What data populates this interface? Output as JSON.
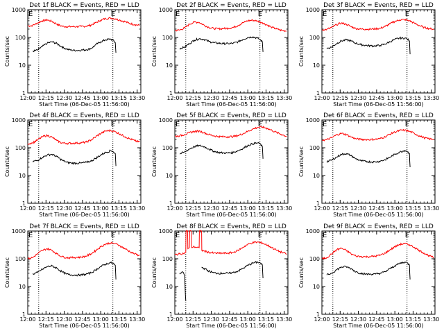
{
  "page": {
    "xlabel": "Start Time (06-Dec-05 11:56:00)",
    "ylabel": "Counts/sec",
    "x_ticks": [
      "12:00",
      "12:15",
      "12:30",
      "12:45",
      "13:00",
      "13:15",
      "13:30"
    ],
    "y_ticks": [
      "1",
      "10",
      "100",
      "1000"
    ],
    "corner_marks": [
      "E",
      "E"
    ],
    "colors": {
      "events": "#000000",
      "lld": "#ff0000",
      "axes": "#000000",
      "marker_lines": "#000000"
    },
    "marker_lines_minutes": [
      13,
      74
    ]
  },
  "chart_data": [
    {
      "type": "line",
      "title": "Det 1f BLACK = Events, RED = LLD",
      "xlabel": "Start Time (06-Dec-05 11:56:00)",
      "ylabel": "Counts/sec",
      "x_unit": "minutes after 11:56:00",
      "xlim": [
        4,
        97
      ],
      "ylim": [
        1,
        1000
      ],
      "yscale": "log",
      "grid": false,
      "series": [
        {
          "name": "LLD",
          "color": "#ff0000",
          "x": [
            4,
            8,
            12,
            16,
            20,
            24,
            28,
            32,
            36,
            40,
            44,
            48,
            52,
            56,
            60,
            64,
            68,
            72,
            76,
            80,
            84,
            88,
            92,
            96
          ],
          "y": [
            260,
            270,
            330,
            400,
            430,
            380,
            300,
            255,
            245,
            245,
            245,
            250,
            255,
            280,
            340,
            420,
            480,
            500,
            470,
            420,
            370,
            320,
            290,
            270
          ]
        },
        {
          "name": "Events",
          "color": "#000000",
          "x": [
            8,
            12,
            16,
            20,
            24,
            28,
            32,
            36,
            40,
            44,
            48,
            52,
            56,
            60,
            64,
            68,
            72,
            74,
            76,
            76.5
          ],
          "y": [
            32,
            35,
            48,
            62,
            70,
            60,
            46,
            38,
            35,
            34,
            35,
            36,
            40,
            55,
            70,
            82,
            88,
            80,
            65,
            28
          ]
        }
      ]
    },
    {
      "type": "line",
      "title": "Det 2f BLACK = Events, RED = LLD",
      "xlabel": "Start Time (06-Dec-05 11:56:00)",
      "ylabel": "Counts/sec",
      "x_unit": "minutes after 11:56:00",
      "xlim": [
        4,
        97
      ],
      "ylim": [
        1,
        1000
      ],
      "yscale": "log",
      "grid": false,
      "series": [
        {
          "name": "LLD",
          "color": "#ff0000",
          "x": [
            4,
            8,
            12,
            16,
            20,
            24,
            28,
            32,
            36,
            40,
            44,
            48,
            52,
            56,
            60,
            64,
            68,
            72,
            76,
            80,
            84,
            88,
            92,
            96
          ],
          "y": [
            180,
            185,
            220,
            300,
            360,
            350,
            280,
            230,
            210,
            205,
            210,
            215,
            230,
            270,
            340,
            400,
            420,
            390,
            340,
            280,
            230,
            200,
            180,
            170
          ]
        },
        {
          "name": "Events",
          "color": "#000000",
          "x": [
            8,
            12,
            16,
            20,
            24,
            28,
            32,
            36,
            40,
            44,
            48,
            52,
            56,
            60,
            64,
            68,
            72,
            74,
            76,
            76.5
          ],
          "y": [
            40,
            45,
            60,
            80,
            90,
            85,
            72,
            65,
            62,
            60,
            60,
            62,
            70,
            85,
            100,
            105,
            95,
            85,
            70,
            30
          ]
        }
      ]
    },
    {
      "type": "line",
      "title": "Det 3f BLACK = Events, RED = LLD",
      "xlabel": "Start Time (06-Dec-05 11:56:00)",
      "ylabel": "Counts/sec",
      "x_unit": "minutes after 11:56:00",
      "xlim": [
        4,
        97
      ],
      "ylim": [
        1,
        1000
      ],
      "yscale": "log",
      "grid": false,
      "series": [
        {
          "name": "LLD",
          "color": "#ff0000",
          "x": [
            4,
            8,
            12,
            16,
            20,
            24,
            28,
            32,
            36,
            40,
            44,
            48,
            52,
            56,
            60,
            64,
            68,
            72,
            76,
            80,
            84,
            88,
            92,
            96
          ],
          "y": [
            190,
            195,
            230,
            290,
            330,
            300,
            245,
            210,
            200,
            200,
            200,
            205,
            215,
            250,
            310,
            380,
            430,
            440,
            400,
            330,
            270,
            230,
            210,
            200
          ]
        },
        {
          "name": "Events",
          "color": "#000000",
          "x": [
            8,
            12,
            16,
            20,
            24,
            28,
            32,
            36,
            40,
            44,
            48,
            52,
            56,
            60,
            64,
            68,
            72,
            74,
            76,
            76.5
          ],
          "y": [
            40,
            45,
            60,
            75,
            82,
            75,
            62,
            55,
            52,
            50,
            50,
            52,
            58,
            70,
            85,
            95,
            95,
            90,
            75,
            25
          ]
        }
      ]
    },
    {
      "type": "line",
      "title": "Det 4f BLACK = Events, RED = LLD",
      "xlabel": "Start Time (06-Dec-05 11:56:00)",
      "ylabel": "Counts/sec",
      "x_unit": "minutes after 11:56:00",
      "xlim": [
        4,
        97
      ],
      "ylim": [
        1,
        1000
      ],
      "yscale": "log",
      "grid": false,
      "series": [
        {
          "name": "LLD",
          "color": "#ff0000",
          "x": [
            4,
            8,
            12,
            16,
            20,
            24,
            28,
            32,
            36,
            40,
            44,
            48,
            52,
            56,
            60,
            64,
            68,
            72,
            76,
            80,
            84,
            88,
            92,
            96
          ],
          "y": [
            140,
            150,
            190,
            250,
            280,
            240,
            180,
            150,
            145,
            145,
            148,
            150,
            160,
            190,
            250,
            330,
            400,
            420,
            380,
            310,
            250,
            210,
            180,
            160
          ]
        },
        {
          "name": "Events",
          "color": "#000000",
          "x": [
            8,
            12,
            16,
            20,
            24,
            28,
            32,
            36,
            40,
            44,
            48,
            52,
            56,
            60,
            64,
            68,
            72,
            74,
            76,
            76.5
          ],
          "y": [
            32,
            35,
            45,
            55,
            58,
            48,
            36,
            30,
            28,
            28,
            28,
            30,
            33,
            42,
            55,
            68,
            78,
            75,
            62,
            22
          ]
        }
      ]
    },
    {
      "type": "line",
      "title": "Det 5f BLACK = Events, RED = LLD",
      "xlabel": "Start Time (06-Dec-05 11:56:00)",
      "ylabel": "Counts/sec",
      "x_unit": "minutes after 11:56:00",
      "xlim": [
        4,
        97
      ],
      "ylim": [
        1,
        1000
      ],
      "yscale": "log",
      "grid": false,
      "series": [
        {
          "name": "LLD",
          "color": "#ff0000",
          "x": [
            4,
            8,
            12,
            16,
            20,
            24,
            28,
            32,
            36,
            40,
            44,
            48,
            52,
            56,
            60,
            64,
            68,
            72,
            76,
            80,
            84,
            88,
            92,
            96
          ],
          "y": [
            260,
            270,
            300,
            350,
            390,
            400,
            350,
            300,
            270,
            255,
            250,
            250,
            255,
            275,
            320,
            390,
            470,
            540,
            560,
            500,
            420,
            350,
            300,
            260
          ]
        },
        {
          "name": "Events",
          "color": "#000000",
          "x": [
            8,
            12,
            16,
            20,
            24,
            28,
            32,
            36,
            40,
            44,
            48,
            52,
            56,
            60,
            64,
            68,
            72,
            74,
            76,
            76.5
          ],
          "y": [
            60,
            70,
            90,
            110,
            120,
            110,
            90,
            75,
            68,
            65,
            65,
            68,
            78,
            95,
            120,
            140,
            150,
            140,
            110,
            40
          ]
        }
      ]
    },
    {
      "type": "line",
      "title": "Det 6f BLACK = Events, RED = LLD",
      "xlabel": "Start Time (06-Dec-05 11:56:00)",
      "ylabel": "Counts/sec",
      "x_unit": "minutes after 11:56:00",
      "xlim": [
        4,
        97
      ],
      "ylim": [
        1,
        1000
      ],
      "yscale": "log",
      "grid": false,
      "series": [
        {
          "name": "LLD",
          "color": "#ff0000",
          "x": [
            4,
            8,
            12,
            16,
            20,
            24,
            28,
            32,
            36,
            40,
            44,
            48,
            52,
            56,
            60,
            64,
            68,
            72,
            76,
            80,
            84,
            88,
            92,
            96
          ],
          "y": [
            190,
            195,
            230,
            290,
            330,
            300,
            245,
            210,
            200,
            198,
            198,
            202,
            215,
            250,
            310,
            370,
            420,
            430,
            390,
            330,
            270,
            230,
            210,
            200
          ]
        },
        {
          "name": "Events",
          "color": "#000000",
          "x": [
            8,
            12,
            16,
            20,
            24,
            28,
            32,
            36,
            40,
            44,
            48,
            52,
            56,
            60,
            64,
            68,
            72,
            74,
            76,
            76.5
          ],
          "y": [
            32,
            36,
            46,
            58,
            62,
            52,
            40,
            34,
            32,
            31,
            31,
            33,
            37,
            46,
            58,
            70,
            80,
            76,
            62,
            20
          ]
        }
      ]
    },
    {
      "type": "line",
      "title": "Det 7f BLACK = Events, RED = LLD",
      "xlabel": "Start Time (06-Dec-05 11:56:00)",
      "ylabel": "Counts/sec",
      "x_unit": "minutes after 11:56:00",
      "xlim": [
        4,
        97
      ],
      "ylim": [
        1,
        1000
      ],
      "yscale": "log",
      "grid": false,
      "series": [
        {
          "name": "LLD",
          "color": "#ff0000",
          "x": [
            4,
            8,
            12,
            16,
            20,
            24,
            28,
            32,
            36,
            40,
            44,
            48,
            52,
            56,
            60,
            64,
            68,
            72,
            76,
            80,
            84,
            88,
            92,
            96
          ],
          "y": [
            100,
            110,
            150,
            200,
            230,
            200,
            150,
            120,
            110,
            110,
            112,
            115,
            125,
            150,
            200,
            270,
            340,
            370,
            350,
            290,
            230,
            180,
            150,
            130
          ]
        },
        {
          "name": "Events",
          "color": "#000000",
          "x": [
            8,
            12,
            16,
            20,
            24,
            28,
            32,
            36,
            40,
            44,
            48,
            52,
            56,
            60,
            64,
            68,
            72,
            74,
            76,
            76.5
          ],
          "y": [
            28,
            32,
            42,
            52,
            55,
            46,
            34,
            28,
            26,
            26,
            26,
            28,
            31,
            40,
            52,
            64,
            72,
            70,
            58,
            18
          ]
        }
      ]
    },
    {
      "type": "line",
      "title": "Det 8f BLACK = Events, RED = LLD",
      "xlabel": "Start Time (06-Dec-05 11:56:00)",
      "ylabel": "Counts/sec",
      "x_unit": "minutes after 11:56:00",
      "xlim": [
        4,
        97
      ],
      "ylim": [
        1,
        1000
      ],
      "yscale": "log",
      "grid": false,
      "series": [
        {
          "name": "LLD",
          "color": "#ff0000",
          "x": [
            4,
            8,
            12,
            13,
            13.2,
            14.5,
            14.7,
            16,
            16.2,
            17.5,
            17.7,
            20,
            24,
            24.2,
            26,
            26.2,
            28,
            32,
            36,
            40,
            44,
            48,
            52,
            56,
            60,
            64,
            68,
            72,
            76,
            80,
            84,
            88,
            92,
            96
          ],
          "y": [
            140,
            150,
            160,
            170,
            1000,
            1000,
            230,
            250,
            1000,
            1000,
            260,
            270,
            250,
            1000,
            1000,
            200,
            190,
            170,
            160,
            158,
            158,
            160,
            170,
            200,
            260,
            330,
            380,
            400,
            370,
            310,
            250,
            200,
            170,
            150
          ]
        },
        {
          "name": "Events",
          "color": "#000000",
          "x": [
            8,
            9,
            10,
            11,
            12,
            12.5,
            13
          ],
          "y": [
            28,
            30,
            34,
            32,
            25,
            8,
            3
          ]
        },
        {
          "name": "Events",
          "color": "#000000",
          "x": [
            26,
            28,
            32,
            36,
            40,
            44,
            48,
            52,
            56,
            60,
            64,
            68,
            72,
            74,
            76,
            76.5
          ],
          "y": [
            50,
            45,
            36,
            31,
            30,
            30,
            30,
            32,
            36,
            45,
            58,
            70,
            76,
            72,
            60,
            20
          ]
        }
      ]
    },
    {
      "type": "line",
      "title": "Det 9f BLACK = Events, RED = LLD",
      "xlabel": "Start Time (06-Dec-05 11:56:00)",
      "ylabel": "Counts/sec",
      "x_unit": "minutes after 11:56:00",
      "xlim": [
        4,
        97
      ],
      "ylim": [
        1,
        1000
      ],
      "yscale": "log",
      "grid": false,
      "series": [
        {
          "name": "LLD",
          "color": "#ff0000",
          "x": [
            4,
            8,
            12,
            16,
            20,
            24,
            28,
            32,
            36,
            40,
            44,
            48,
            52,
            56,
            60,
            64,
            68,
            72,
            76,
            80,
            84,
            88,
            92,
            96
          ],
          "y": [
            100,
            110,
            150,
            210,
            240,
            200,
            150,
            125,
            120,
            118,
            120,
            125,
            135,
            160,
            210,
            270,
            330,
            350,
            320,
            260,
            200,
            160,
            130,
            110
          ]
        },
        {
          "name": "Events",
          "color": "#000000",
          "x": [
            8,
            12,
            16,
            20,
            24,
            28,
            32,
            36,
            40,
            44,
            48,
            52,
            56,
            60,
            64,
            68,
            72,
            74,
            76,
            76.5
          ],
          "y": [
            26,
            30,
            40,
            50,
            52,
            44,
            34,
            30,
            28,
            28,
            28,
            30,
            34,
            44,
            56,
            68,
            76,
            72,
            60,
            18
          ]
        }
      ]
    }
  ]
}
